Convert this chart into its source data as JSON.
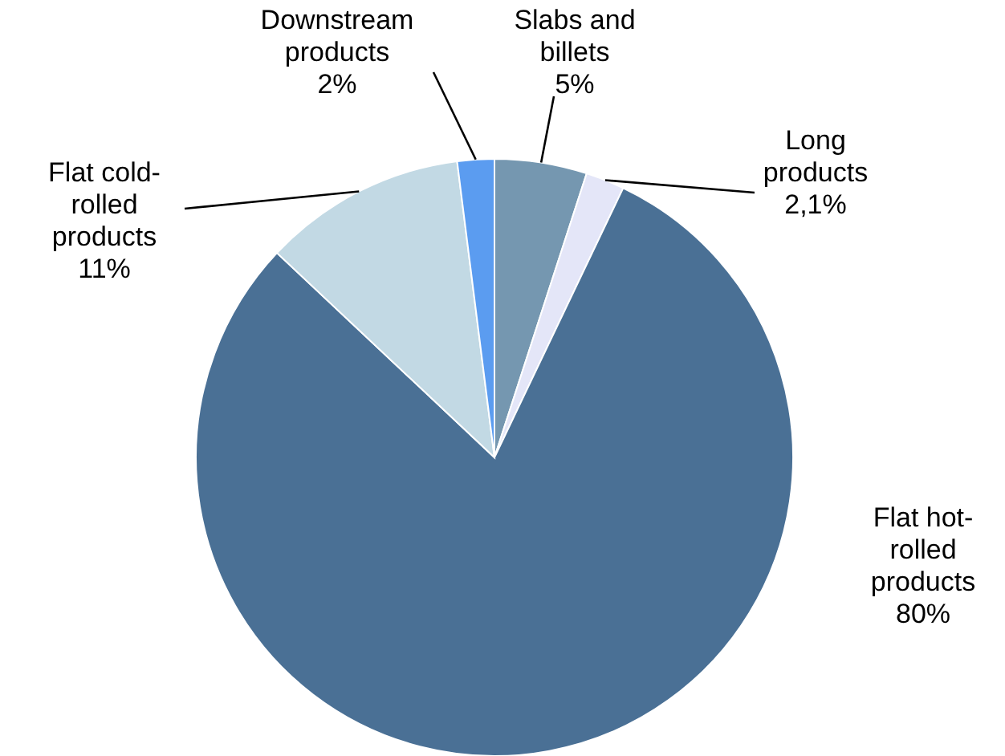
{
  "chart_data": {
    "type": "pie",
    "categories": [
      "Slabs and billets",
      "Long products",
      "Flat hot-rolled products",
      "Flat cold-rolled products",
      "Downstream products"
    ],
    "values": [
      5,
      2.1,
      80,
      11,
      2
    ],
    "value_labels": [
      "5%",
      "2,1%",
      "80%",
      "11%",
      "2%"
    ],
    "colors": [
      "#7597b0",
      "#e4e6f8",
      "#4a7095",
      "#c2d9e4",
      "#5b9cf0"
    ]
  }
}
